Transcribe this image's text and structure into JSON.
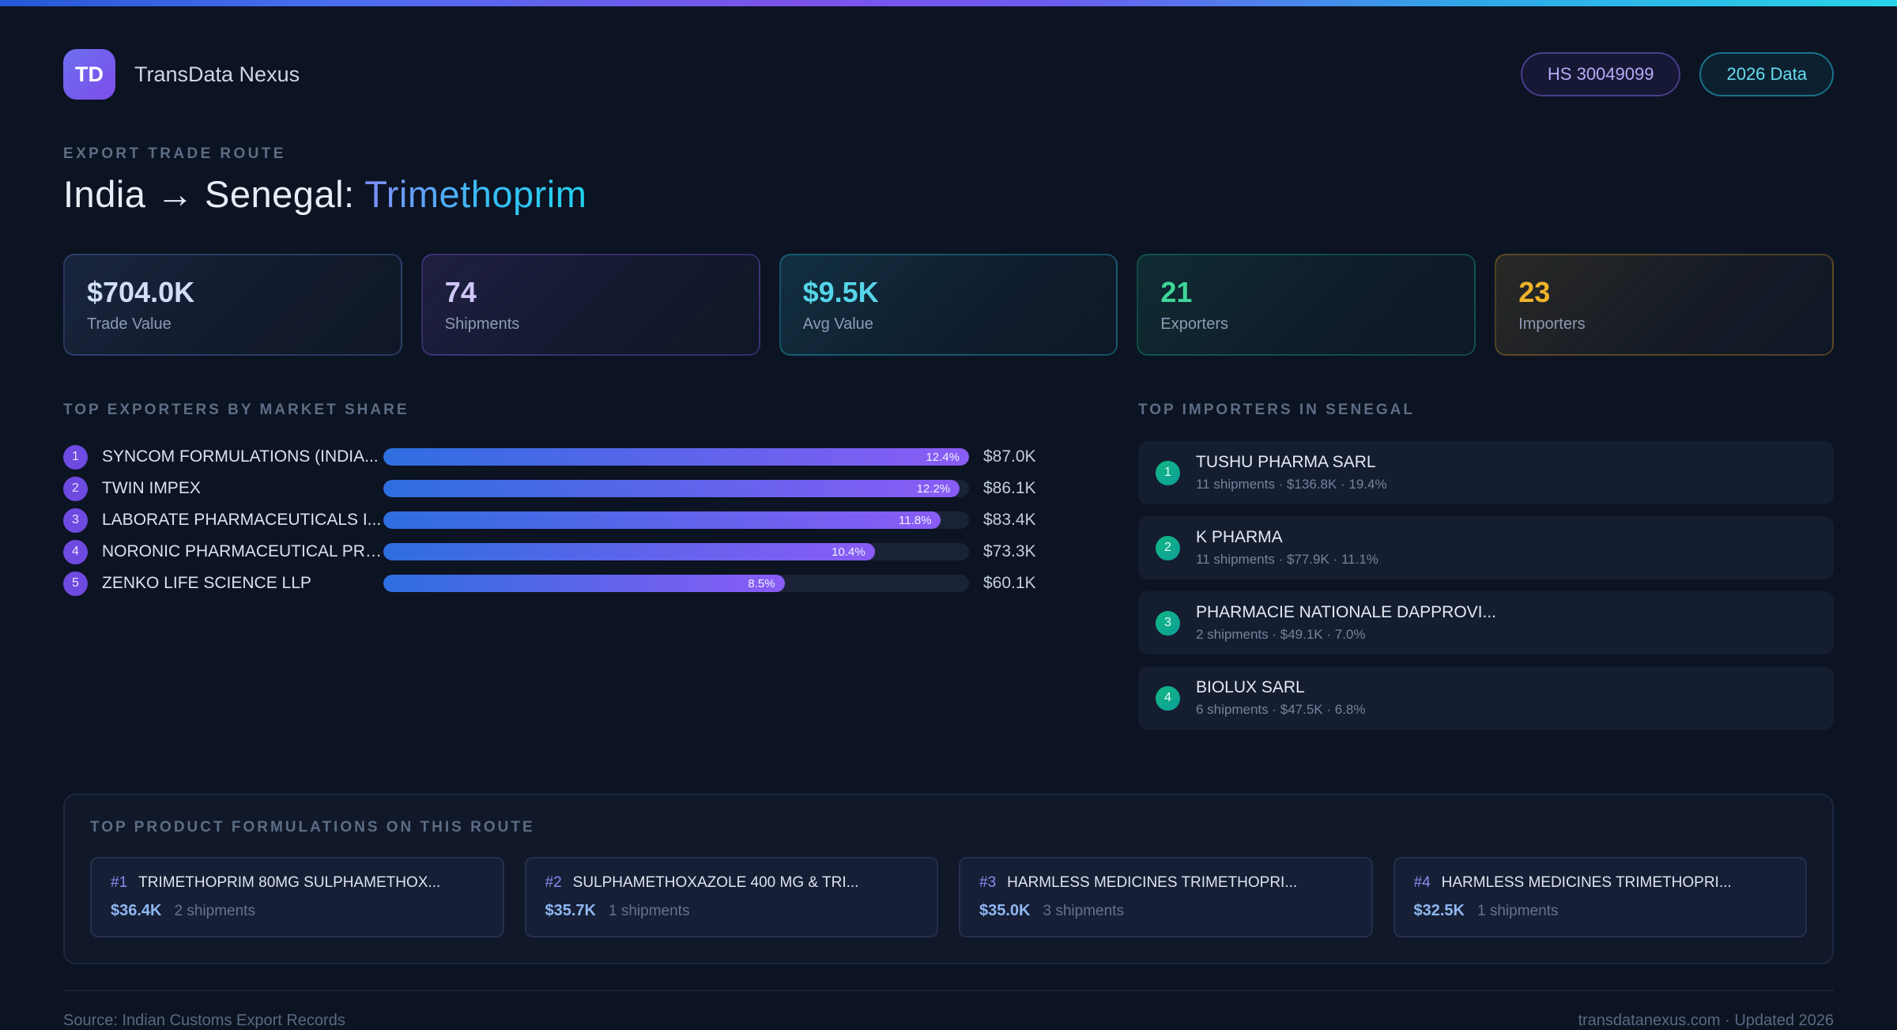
{
  "app": {
    "logo_text": "TD",
    "name": "TransData Nexus"
  },
  "header": {
    "badge_hs": "HS 30049099",
    "badge_year": "2026 Data",
    "eyebrow": "EXPORT TRADE ROUTE",
    "title_main": "India → Senegal:",
    "title_accent": "Trimethoprim"
  },
  "stats": [
    {
      "value": "$704.0K",
      "label": "Trade Value",
      "accent": "#5f86d8",
      "color": "#d2def5"
    },
    {
      "value": "74",
      "label": "Shipments",
      "accent": "#8b5cf6",
      "color": "#cfc5f7"
    },
    {
      "value": "$9.5K",
      "label": "Avg Value",
      "accent": "#22d3ee",
      "color": "#56d4e8"
    },
    {
      "value": "21",
      "label": "Exporters",
      "accent": "#10b981",
      "color": "#3fd69a"
    },
    {
      "value": "23",
      "label": "Importers",
      "accent": "#d9a020",
      "color": "#f0b429"
    }
  ],
  "exporters": {
    "title": "TOP EXPORTERS BY MARKET SHARE",
    "items": [
      {
        "rank": "1",
        "name": "SYNCOM FORMULATIONS (INDIA...",
        "share": "12.4%",
        "share_pct": 12.4,
        "value": "$87.0K"
      },
      {
        "rank": "2",
        "name": "TWIN IMPEX",
        "share": "12.2%",
        "share_pct": 12.2,
        "value": "$86.1K"
      },
      {
        "rank": "3",
        "name": "LABORATE PHARMACEUTICALS I...",
        "share": "11.8%",
        "share_pct": 11.8,
        "value": "$83.4K"
      },
      {
        "rank": "4",
        "name": "NORONIC PHARMACEUTICAL PRI...",
        "share": "10.4%",
        "share_pct": 10.4,
        "value": "$73.3K"
      },
      {
        "rank": "5",
        "name": "ZENKO LIFE SCIENCE LLP",
        "share": "8.5%",
        "share_pct": 8.5,
        "value": "$60.1K"
      }
    ]
  },
  "importers": {
    "title": "TOP IMPORTERS IN SENEGAL",
    "items": [
      {
        "rank": "1",
        "name": "TUSHU PHARMA SARL",
        "meta": "11 shipments · $136.8K · 19.4%"
      },
      {
        "rank": "2",
        "name": "K PHARMA",
        "meta": "11 shipments · $77.9K · 11.1%"
      },
      {
        "rank": "3",
        "name": "PHARMACIE NATIONALE DAPPROVI...",
        "meta": "2 shipments · $49.1K · 7.0%"
      },
      {
        "rank": "4",
        "name": "BIOLUX SARL",
        "meta": "6 shipments · $47.5K · 6.8%"
      }
    ]
  },
  "products": {
    "title": "TOP PRODUCT FORMULATIONS ON THIS ROUTE",
    "items": [
      {
        "rank": "#1",
        "name": "TRIMETHOPRIM 80MG SULPHAMETHOX...",
        "value": "$36.4K",
        "shipments": "2 shipments"
      },
      {
        "rank": "#2",
        "name": "SULPHAMETHOXAZOLE 400 MG & TRI...",
        "value": "$35.7K",
        "shipments": "1 shipments"
      },
      {
        "rank": "#3",
        "name": "HARMLESS MEDICINES TRIMETHOPRI...",
        "value": "$35.0K",
        "shipments": "3 shipments"
      },
      {
        "rank": "#4",
        "name": "HARMLESS MEDICINES TRIMETHOPRI...",
        "value": "$32.5K",
        "shipments": "1 shipments"
      }
    ]
  },
  "footer": {
    "source": "Source: Indian Customs Export Records",
    "site": "transdatanexus.com · Updated 2026"
  },
  "theme": {
    "page_bg": "#0c1322",
    "top_gradient": [
      "#2458d8",
      "#7d52ec",
      "#29d3e8"
    ],
    "title_accent_gradient": [
      "#818cf8",
      "#22d3ee"
    ],
    "bar_gradient": [
      "#2e6ee0",
      "#8a5cf5"
    ],
    "exporter_badge": "#6d4ae0",
    "importer_badge": "#10b981"
  },
  "chart_data": {
    "type": "bar",
    "orientation": "horizontal",
    "title": "TOP EXPORTERS BY MARKET SHARE",
    "categories": [
      "SYNCOM FORMULATIONS (INDIA...",
      "TWIN IMPEX",
      "LABORATE PHARMACEUTICALS I...",
      "NORONIC PHARMACEUTICAL PRI...",
      "ZENKO LIFE SCIENCE LLP"
    ],
    "values": [
      12.4,
      12.2,
      11.8,
      10.4,
      8.5
    ],
    "unit": "%",
    "value_labels": [
      "$87.0K",
      "$86.1K",
      "$83.4K",
      "$73.3K",
      "$60.1K"
    ],
    "xlim": [
      0,
      12.4
    ],
    "grid": false,
    "legend": false
  }
}
